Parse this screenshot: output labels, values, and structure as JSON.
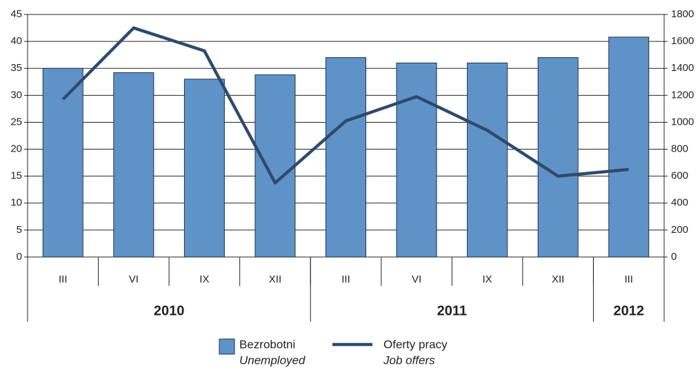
{
  "chart_data": {
    "type": "bar_line",
    "categories": [
      "III",
      "VI",
      "IX",
      "XII",
      "III",
      "VI",
      "IX",
      "XII",
      "III"
    ],
    "groups": [
      {
        "label": "2010",
        "span": 4
      },
      {
        "label": "2011",
        "span": 4
      },
      {
        "label": "2012",
        "span": 1
      }
    ],
    "series": [
      {
        "name": "Bezrobotni",
        "name_en": "Unemployed",
        "type": "bar",
        "color": "#5f93c8",
        "values": [
          35,
          34.2,
          33,
          33.8,
          37,
          36,
          36,
          37,
          40.8
        ]
      },
      {
        "name": "Oferty pracy",
        "name_en": "Job offers",
        "type": "line",
        "axis": "y2",
        "color": "#2e4a6e",
        "values": [
          1170,
          1700,
          1530,
          550,
          1010,
          1190,
          940,
          600,
          650
        ]
      }
    ],
    "ylim": [
      0,
      45
    ],
    "yticks": [
      0,
      5,
      10,
      15,
      20,
      25,
      30,
      35,
      40,
      45
    ],
    "y2lim": [
      0,
      1800
    ],
    "y2ticks": [
      0,
      200,
      400,
      600,
      800,
      1000,
      1200,
      1400,
      1600,
      1800
    ],
    "grid": true,
    "legend": "bottom"
  }
}
